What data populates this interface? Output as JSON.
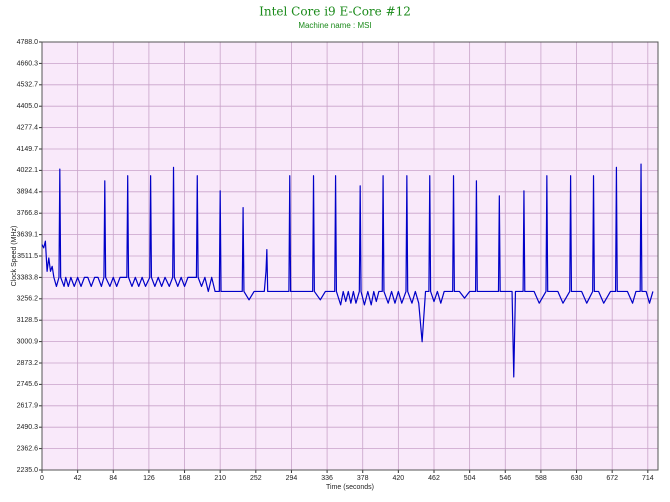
{
  "chart_data": {
    "type": "line",
    "title": "Intel Core i9 E-Core #12",
    "subtitle": "Machine name : MSI",
    "x_label": "Time (seconds)",
    "y_label": "Clock Speed (MHz)",
    "color": "#0000c8",
    "grid": true,
    "xlim": [
      0,
      726
    ],
    "ylim": [
      2235,
      4788
    ],
    "xticks": [
      0,
      42,
      84,
      126,
      168,
      210,
      252,
      294,
      336,
      378,
      420,
      462,
      504,
      546,
      588,
      630,
      672,
      714
    ],
    "yticks": [
      {
        "value": 2235,
        "label": "2235.0"
      },
      2362.6,
      2490.3,
      2617.9,
      2745.6,
      2873.2,
      3000.9,
      3128.5,
      3256.2,
      3383.8,
      3511.5,
      3639.1,
      3766.8,
      3894.4,
      4022.1,
      4149.7,
      4277.4,
      {
        "value": 4405,
        "label": "4405.0"
      },
      4532.7,
      4660.3,
      {
        "value": 4788,
        "label": "4788.0"
      }
    ],
    "x": [
      0,
      2,
      4,
      6,
      8,
      10,
      12,
      14,
      17,
      20,
      21,
      22,
      26,
      28,
      31,
      34,
      38,
      42,
      46,
      50,
      54,
      58,
      62,
      66,
      70,
      73,
      74,
      75,
      80,
      84,
      88,
      92,
      96,
      100,
      101,
      102,
      106,
      110,
      114,
      118,
      122,
      127,
      128,
      129,
      133,
      137,
      141,
      145,
      150,
      154,
      155,
      156,
      160,
      164,
      168,
      172,
      176,
      182,
      183,
      184,
      188,
      192,
      196,
      200,
      204,
      209,
      210,
      211,
      216,
      222,
      228,
      236,
      237,
      238,
      244,
      250,
      256,
      262,
      264,
      265,
      266,
      270,
      276,
      282,
      291,
      292,
      293,
      300,
      306,
      312,
      319,
      320,
      321,
      328,
      334,
      340,
      345,
      346,
      347,
      352,
      355,
      358,
      361,
      364,
      367,
      370,
      374,
      375,
      376,
      380,
      384,
      388,
      391,
      394,
      397,
      401,
      402,
      403,
      408,
      412,
      416,
      420,
      424,
      429,
      430,
      431,
      436,
      440,
      444,
      448,
      452,
      456,
      457,
      458,
      462,
      466,
      470,
      474,
      478,
      484,
      485,
      486,
      492,
      498,
      504,
      511,
      512,
      513,
      518,
      524,
      530,
      538,
      539,
      540,
      546,
      550,
      554,
      556,
      558,
      562,
      567,
      568,
      569,
      574,
      580,
      586,
      594,
      595,
      596,
      602,
      608,
      614,
      622,
      623,
      624,
      630,
      636,
      642,
      649,
      650,
      651,
      656,
      662,
      670,
      676,
      677,
      678,
      684,
      690,
      696,
      700,
      705,
      706,
      707,
      712,
      716,
      720
    ],
    "values": [
      3580,
      3560,
      3600,
      3420,
      3500,
      3420,
      3450,
      3384,
      3330,
      3384,
      4030,
      3384,
      3330,
      3384,
      3330,
      3384,
      3330,
      3384,
      3330,
      3384,
      3384,
      3330,
      3384,
      3384,
      3330,
      3384,
      3960,
      3384,
      3330,
      3384,
      3330,
      3384,
      3384,
      3384,
      3990,
      3384,
      3330,
      3384,
      3330,
      3384,
      3330,
      3384,
      3990,
      3384,
      3330,
      3384,
      3330,
      3384,
      3330,
      3384,
      4040,
      3384,
      3330,
      3384,
      3330,
      3384,
      3384,
      3384,
      3990,
      3384,
      3330,
      3384,
      3300,
      3384,
      3300,
      3300,
      3900,
      3300,
      3300,
      3300,
      3300,
      3300,
      3800,
      3300,
      3250,
      3300,
      3300,
      3300,
      3420,
      3550,
      3300,
      3300,
      3300,
      3300,
      3300,
      3990,
      3300,
      3300,
      3300,
      3300,
      3300,
      3990,
      3300,
      3250,
      3300,
      3300,
      3300,
      3990,
      3300,
      3220,
      3300,
      3240,
      3300,
      3230,
      3300,
      3230,
      3300,
      3930,
      3300,
      3220,
      3300,
      3220,
      3300,
      3240,
      3300,
      3300,
      3990,
      3300,
      3230,
      3300,
      3230,
      3300,
      3230,
      3300,
      3990,
      3300,
      3230,
      3300,
      3230,
      3000,
      3300,
      3300,
      3990,
      3300,
      3240,
      3300,
      3230,
      3300,
      3300,
      3300,
      3990,
      3300,
      3300,
      3260,
      3300,
      3300,
      3960,
      3300,
      3300,
      3300,
      3300,
      3300,
      3870,
      3300,
      3300,
      3300,
      3300,
      2790,
      3300,
      3300,
      3300,
      3900,
      3300,
      3300,
      3300,
      3230,
      3300,
      3990,
      3300,
      3300,
      3300,
      3230,
      3300,
      3990,
      3300,
      3300,
      3300,
      3230,
      3300,
      3990,
      3300,
      3300,
      3230,
      3300,
      3300,
      4040,
      3300,
      3300,
      3300,
      3230,
      3300,
      3300,
      4060,
      3300,
      3300,
      3230,
      3300
    ]
  }
}
